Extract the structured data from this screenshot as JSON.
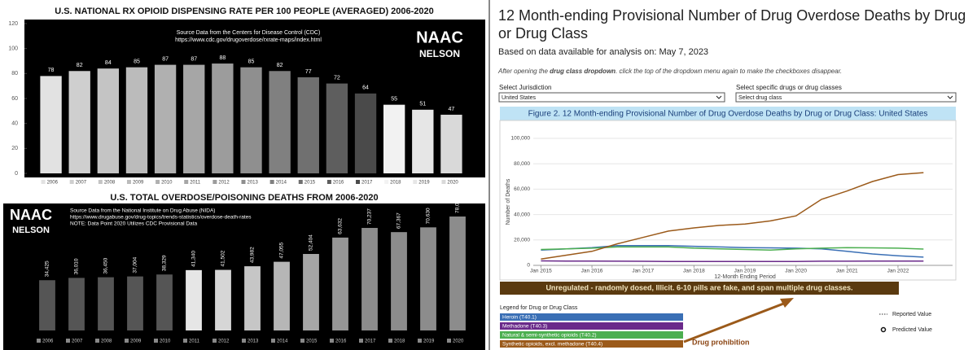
{
  "chart_data": [
    {
      "type": "bar",
      "title": "U.S. NATIONAL RX OPIOID DISPENSING RATE PER 100 PEOPLE (AVERAGED) 2006-2020",
      "subtitle": [
        "Source Data from the Centers for Disease Control (CDC)",
        "https://www.cdc.gov/drugoverdose/rxrate-maps/index.html"
      ],
      "logo": [
        "NAAC",
        "NELSON"
      ],
      "categories": [
        "2006",
        "2007",
        "2008",
        "2009",
        "2010",
        "2011",
        "2012",
        "2013",
        "2014",
        "2015",
        "2016",
        "2017",
        "2018",
        "2019",
        "2020"
      ],
      "values": [
        78,
        82,
        84,
        85,
        87,
        87,
        88,
        85,
        82,
        77,
        72,
        64,
        55,
        51,
        47
      ],
      "colors": [
        "#e2e2e2",
        "#cfcfcf",
        "#c4c4c4",
        "#bbbbbb",
        "#b0b0b0",
        "#a6a6a6",
        "#9c9c9c",
        "#8f8f8f",
        "#808080",
        "#707070",
        "#5e5e5e",
        "#4a4a4a",
        "#f2f2f2",
        "#e6e6e6",
        "#d9d9d9"
      ],
      "ylim": [
        0,
        120
      ],
      "yticks": [
        0,
        20,
        40,
        60,
        80,
        100,
        120
      ],
      "legend": "bottom"
    },
    {
      "type": "bar",
      "title": "U.S. TOTAL OVERDOSE/POISONING DEATHS FROM 2006-2020",
      "subtitle": [
        "Source Data from the National Institute on Drug Abuse (NIDA)",
        "https://www.drugabuse.gov/drug-topics/trends-statistics/overdose-death-rates",
        "NOTE: Data Point 2020 Utilizes CDC Provisional Data"
      ],
      "logo": [
        "NAAC",
        "NELSON"
      ],
      "categories": [
        "2006",
        "2007",
        "2008",
        "2009",
        "2010",
        "2011",
        "2012",
        "2013",
        "2014",
        "2015",
        "2016",
        "2017",
        "2018",
        "2019",
        "2020"
      ],
      "values": [
        34425,
        36010,
        36450,
        37004,
        38329,
        41340,
        41502,
        43982,
        47055,
        52404,
        63632,
        70237,
        67367,
        70630,
        78056
      ],
      "value_labels": [
        "34,425",
        "36,010",
        "36,450",
        "37,004",
        "38,329",
        "41,340",
        "41,502",
        "43,982",
        "47,055",
        "52,404",
        "63,632",
        "70,237",
        "67,367",
        "70,630",
        "78,056"
      ],
      "colors": [
        "#555555",
        "#555555",
        "#555555",
        "#555555",
        "#555555",
        "#e6e6e6",
        "#d6d6d6",
        "#c6c6c6",
        "#b6b6b6",
        "#a6a6a6",
        "#969696",
        "#8c8c8c",
        "#8c8c8c",
        "#8c8c8c",
        "#8c8c8c"
      ],
      "legend": "bottom"
    },
    {
      "type": "line",
      "title": "Figure 2. 12 Month-ending Provisional Number of Drug Overdose Deaths by Drug or Drug Class: United States",
      "x_label": "12-Month Ending Period",
      "y_label": "Number of Deaths",
      "x": [
        2015,
        2015.5,
        2016,
        2016.5,
        2017,
        2017.5,
        2018,
        2018.5,
        2019,
        2019.5,
        2020,
        2020.5,
        2021,
        2021.5,
        2022,
        2022.5
      ],
      "xlim": [
        2014.85,
        2023.15
      ],
      "xticks": [
        {
          "value": 2015,
          "label": "Jan 2015"
        },
        {
          "value": 2016,
          "label": "Jan 2016"
        },
        {
          "value": 2017,
          "label": "Jan 2017"
        },
        {
          "value": 2018,
          "label": "Jan 2018"
        },
        {
          "value": 2019,
          "label": "Jan 2019"
        },
        {
          "value": 2020,
          "label": "Jan 2020"
        },
        {
          "value": 2021,
          "label": "Jan 2021"
        },
        {
          "value": 2022,
          "label": "Jan 2022"
        }
      ],
      "ylim": [
        0,
        100000
      ],
      "yticks": [
        0,
        {
          "value": 20000,
          "label": "20,000"
        },
        {
          "value": 40000,
          "label": "40,000"
        },
        {
          "value": 60000,
          "label": "60,000"
        },
        {
          "value": 80000,
          "label": "80,000"
        },
        {
          "value": 100000,
          "label": "100,000"
        }
      ],
      "grid": true,
      "series": [
        {
          "name": "Heroin (T40.1)",
          "color": "#3a6fb5",
          "values": [
            12000,
            13000,
            14000,
            15500,
            15500,
            15500,
            15000,
            14500,
            14000,
            13800,
            13500,
            13000,
            11000,
            9000,
            7500,
            6500
          ]
        },
        {
          "name": "Methadone (T40.3)",
          "color": "#6a2a8a",
          "values": [
            3500,
            3400,
            3400,
            3300,
            3200,
            3100,
            3000,
            3000,
            3000,
            3000,
            3100,
            3300,
            3300,
            3400,
            3400,
            3400
          ]
        },
        {
          "name": "Natural & semi-synthetic opioids (T40.2)",
          "color": "#4caf50",
          "values": [
            12500,
            13000,
            13500,
            14500,
            14500,
            14500,
            13500,
            13000,
            12500,
            12000,
            13000,
            13500,
            14000,
            13800,
            13500,
            12800
          ]
        },
        {
          "name": "Synthetic opioids, excl. methadone (T40.4)",
          "color": "#9b5a1a",
          "values": [
            5000,
            8000,
            11000,
            17000,
            22000,
            27000,
            29500,
            31500,
            32500,
            35000,
            39000,
            52000,
            58500,
            66000,
            71500,
            73000
          ]
        }
      ],
      "legend_title": "Legend for Drug or Drug Class",
      "marker_legend": [
        "Reported Value",
        "Predicted Value"
      ],
      "annotations": [
        "Unregulated - randomly dosed, Illicit. 6-10 pills are fake, and span multiple drug classes.",
        "Drug prohibition"
      ]
    }
  ],
  "page": {
    "title": "12 Month-ending Provisional Number of Drug Overdose Deaths by Drug or Drug Class",
    "data_date": "Based on data available for analysis on: May 7, 2023",
    "instruction": [
      "After opening the ",
      "drug class dropdown",
      ". click the top of the dropdown menu again to make the checkboxes disappear."
    ],
    "jurisdiction": {
      "label": "Select Jurisdiction",
      "value": "United States"
    },
    "drugs": {
      "label": "Select specific drugs or drug classes",
      "value": "Select drug class"
    }
  }
}
